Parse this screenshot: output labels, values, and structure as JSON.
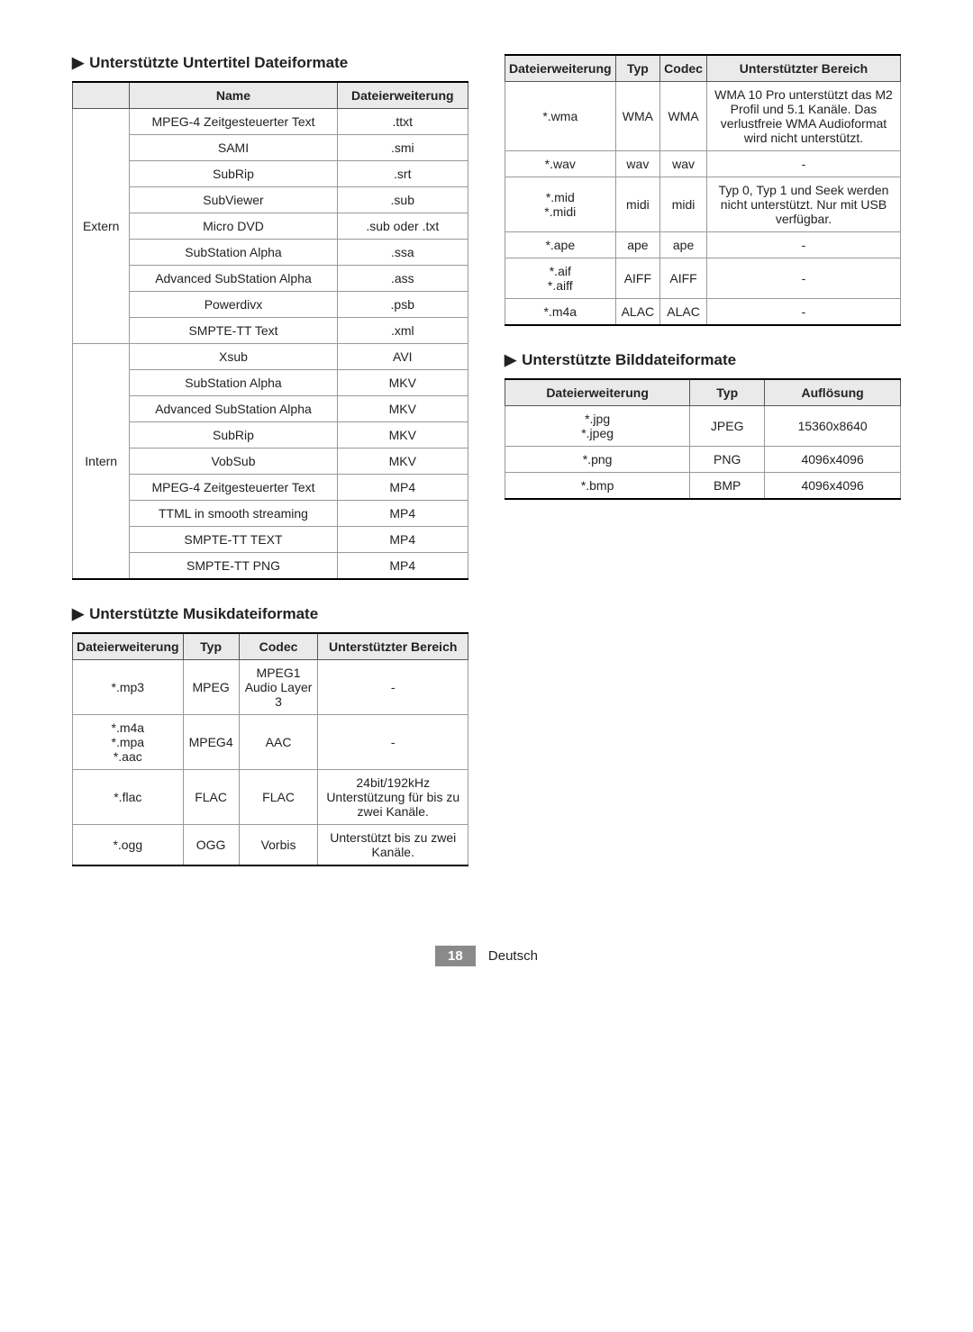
{
  "headings": {
    "subtitle": "Unterstützte Untertitel Dateiformate",
    "music": "Unterstützte Musikdateiformate",
    "image": "Unterstützte Bilddateiformate",
    "tri": "▶"
  },
  "subtitle_table": {
    "headers": {
      "cat": "",
      "name": "Name",
      "ext": "Dateierweiterung"
    },
    "groups": [
      {
        "cat": "Extern",
        "rows": [
          {
            "name": "MPEG-4 Zeitgesteuerter Text",
            "ext": ".ttxt"
          },
          {
            "name": "SAMI",
            "ext": ".smi"
          },
          {
            "name": "SubRip",
            "ext": ".srt"
          },
          {
            "name": "SubViewer",
            "ext": ".sub"
          },
          {
            "name": "Micro DVD",
            "ext": ".sub oder .txt"
          },
          {
            "name": "SubStation Alpha",
            "ext": ".ssa"
          },
          {
            "name": "Advanced SubStation Alpha",
            "ext": ".ass"
          },
          {
            "name": "Powerdivx",
            "ext": ".psb"
          },
          {
            "name": "SMPTE-TT Text",
            "ext": ".xml"
          }
        ]
      },
      {
        "cat": "Intern",
        "rows": [
          {
            "name": "Xsub",
            "ext": "AVI"
          },
          {
            "name": "SubStation Alpha",
            "ext": "MKV"
          },
          {
            "name": "Advanced SubStation Alpha",
            "ext": "MKV"
          },
          {
            "name": "SubRip",
            "ext": "MKV"
          },
          {
            "name": "VobSub",
            "ext": "MKV"
          },
          {
            "name": "MPEG-4 Zeitgesteuerter Text",
            "ext": "MP4"
          },
          {
            "name": "TTML in smooth streaming",
            "ext": "MP4"
          },
          {
            "name": "SMPTE-TT TEXT",
            "ext": "MP4"
          },
          {
            "name": "SMPTE-TT PNG",
            "ext": "MP4"
          }
        ]
      }
    ]
  },
  "music_table": {
    "headers": {
      "ext": "Dateierweiterung",
      "typ": "Typ",
      "codec": "Codec",
      "range": "Unterstützter Bereich"
    },
    "rows": [
      {
        "ext": "*.mp3",
        "typ": "MPEG",
        "codec": "MPEG1 Audio Layer 3",
        "range": "-"
      },
      {
        "ext": "*.m4a\n*.mpa\n*.aac",
        "typ": "MPEG4",
        "codec": "AAC",
        "range": "-"
      },
      {
        "ext": "*.flac",
        "typ": "FLAC",
        "codec": "FLAC",
        "range": "24bit/192kHz Unterstützung für bis zu zwei Kanäle."
      },
      {
        "ext": "*.ogg",
        "typ": "OGG",
        "codec": "Vorbis",
        "range": "Unterstützt bis zu zwei Kanäle."
      }
    ]
  },
  "music_table2": {
    "rows": [
      {
        "ext": "*.wma",
        "typ": "WMA",
        "codec": "WMA",
        "range": "WMA 10 Pro unterstützt das M2 Profil und 5.1 Kanäle. Das verlustfreie WMA Audioformat wird nicht unterstützt."
      },
      {
        "ext": "*.wav",
        "typ": "wav",
        "codec": "wav",
        "range": "-"
      },
      {
        "ext": "*.mid\n*.midi",
        "typ": "midi",
        "codec": "midi",
        "range": "Typ 0, Typ 1 und Seek werden nicht unterstützt. Nur mit USB verfügbar."
      },
      {
        "ext": "*.ape",
        "typ": "ape",
        "codec": "ape",
        "range": "-"
      },
      {
        "ext": "*.aif\n*.aiff",
        "typ": "AIFF",
        "codec": "AIFF",
        "range": "-"
      },
      {
        "ext": "*.m4a",
        "typ": "ALAC",
        "codec": "ALAC",
        "range": "-"
      }
    ]
  },
  "image_table": {
    "headers": {
      "ext": "Dateierweiterung",
      "typ": "Typ",
      "res": "Auflösung"
    },
    "rows": [
      {
        "ext": "*.jpg\n*.jpeg",
        "typ": "JPEG",
        "res": "15360x8640"
      },
      {
        "ext": "*.png",
        "typ": "PNG",
        "res": "4096x4096"
      },
      {
        "ext": "*.bmp",
        "typ": "BMP",
        "res": "4096x4096"
      }
    ]
  },
  "footer": {
    "page": "18",
    "lang": "Deutsch"
  }
}
